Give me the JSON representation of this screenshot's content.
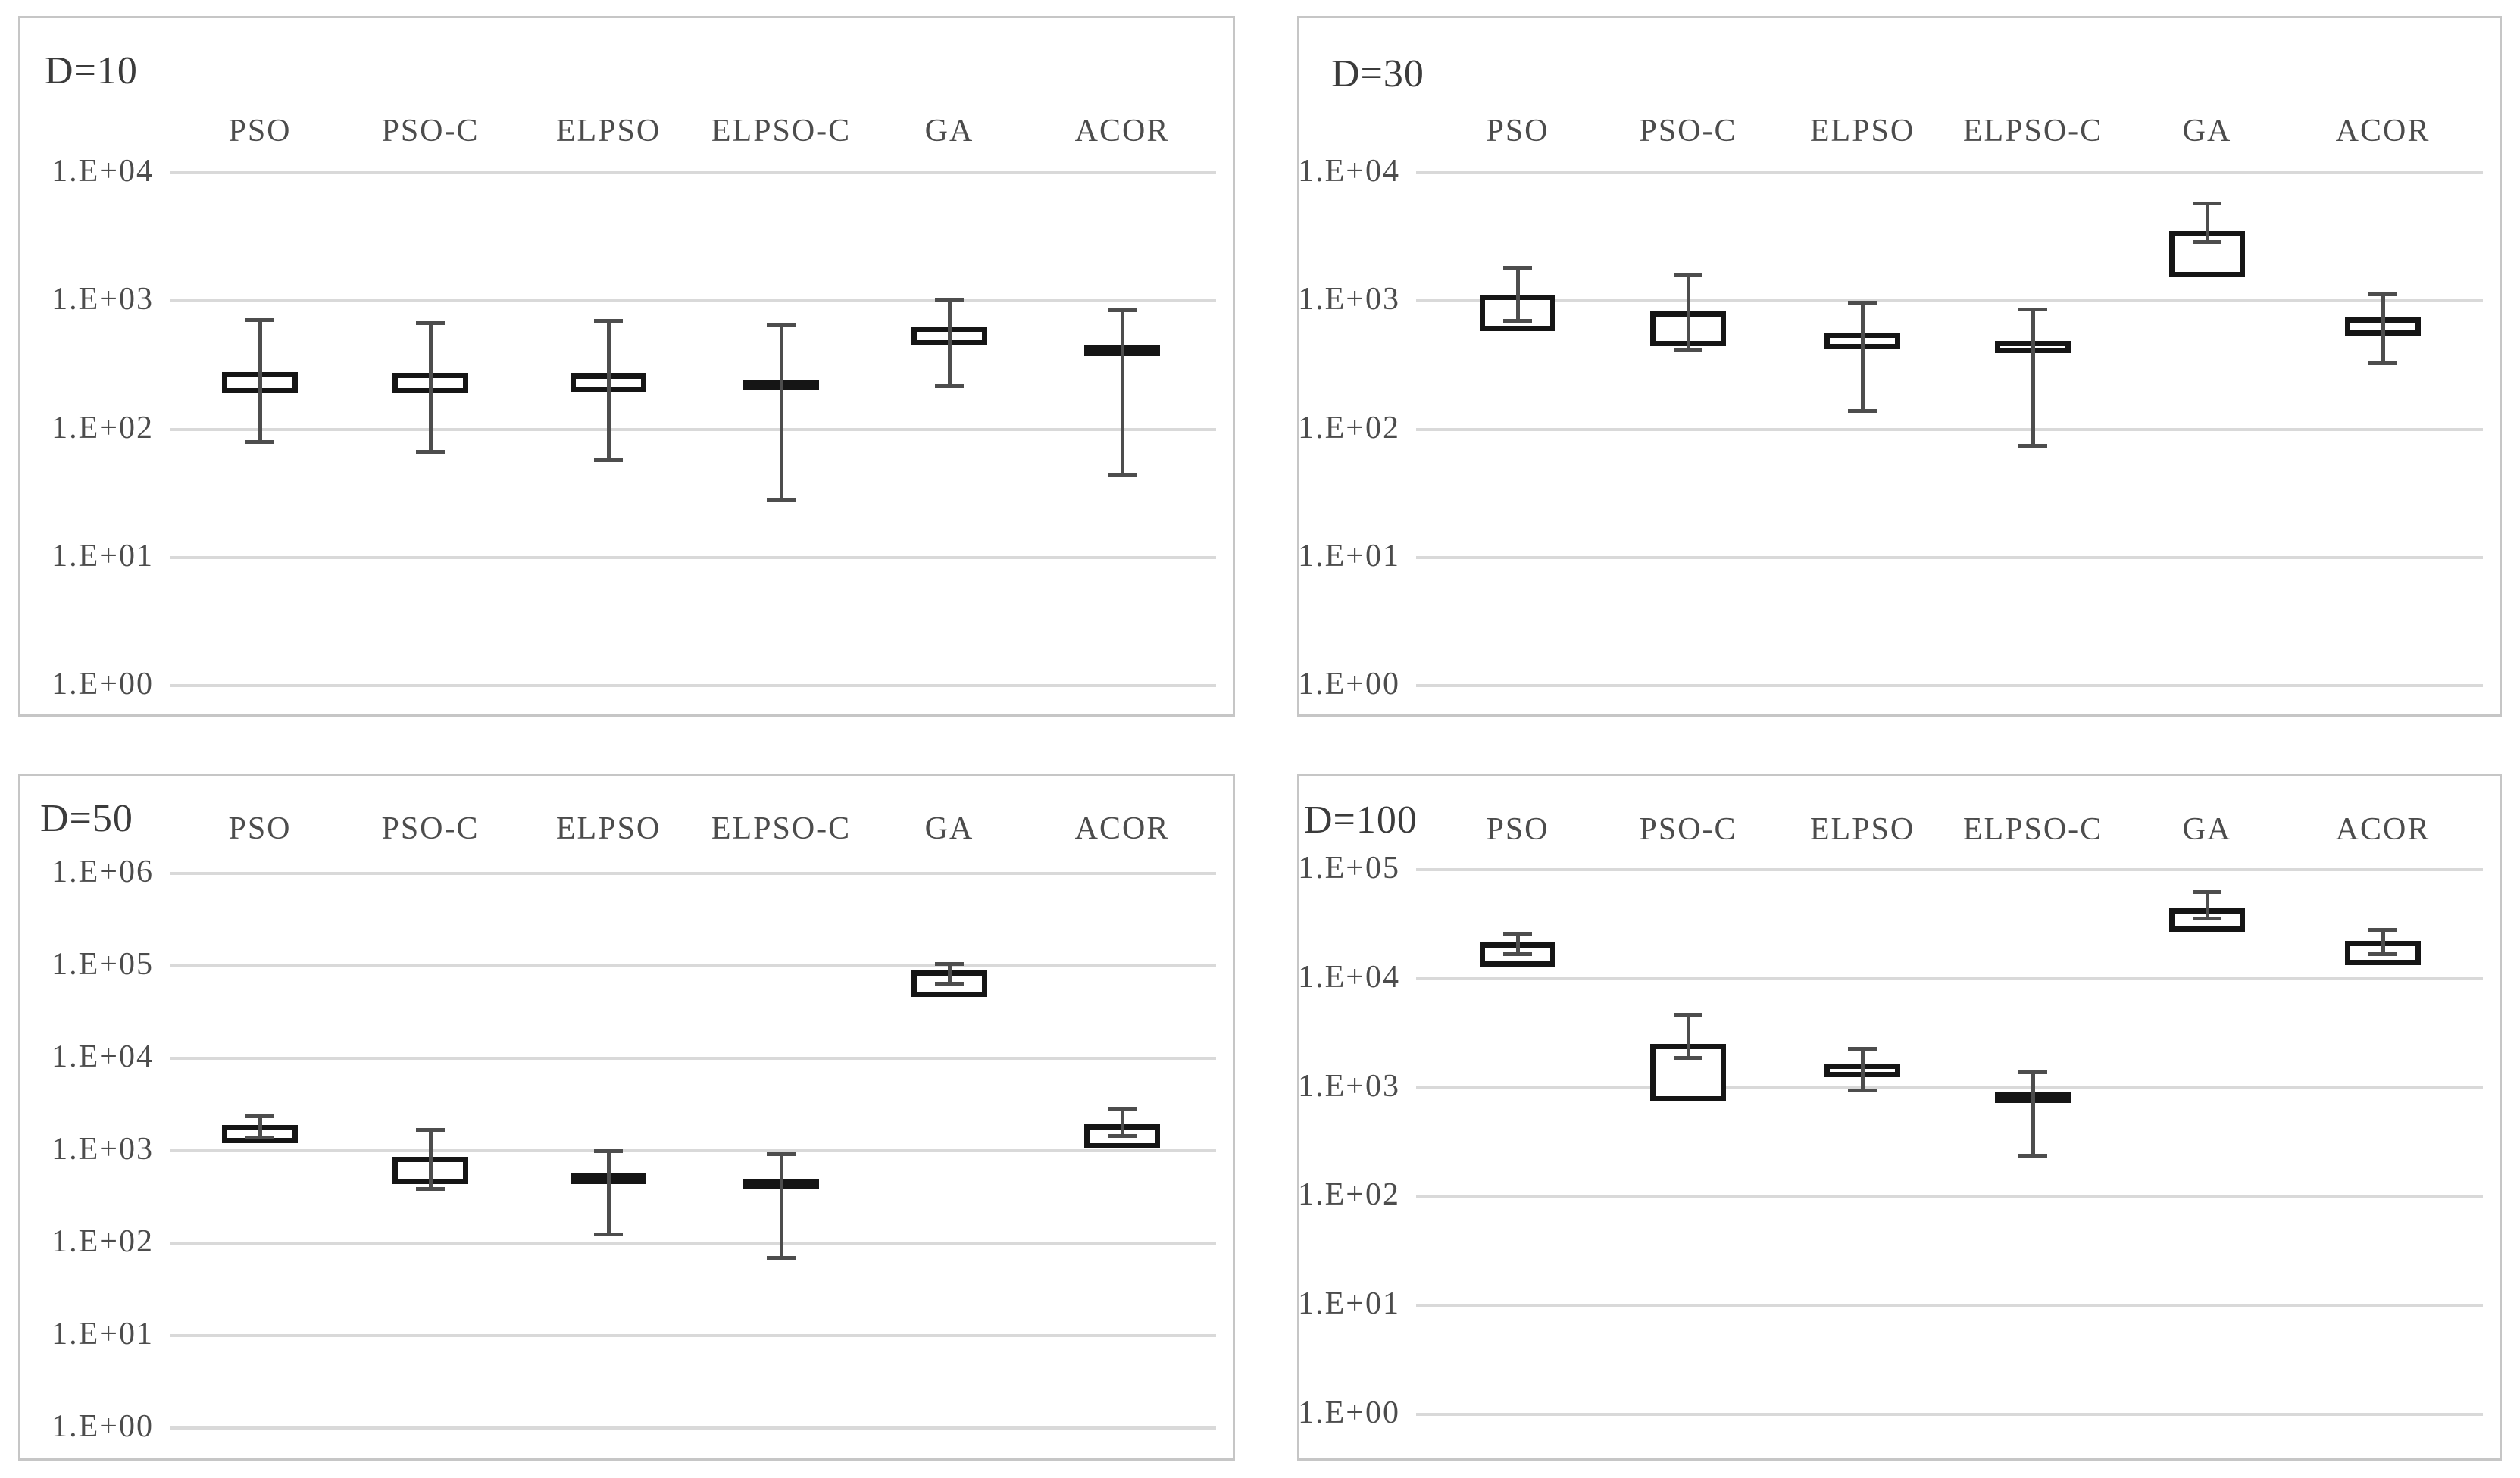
{
  "page": {
    "background": "#ffffff"
  },
  "colors": {
    "panel_border": "#c6c6c6",
    "gridline": "#d9d9d9",
    "whisker": "#4d4d4d",
    "box_border": "#151515",
    "title_text": "#3b3b3b",
    "label_text": "#4c4c4c"
  },
  "categories": [
    "PSO",
    "PSO-C",
    "ELPSO",
    "ELPSO-C",
    "GA",
    "ACOR"
  ],
  "chart_data": [
    {
      "type": "boxplot",
      "title": "D=10",
      "y_scale": "log",
      "grid": true,
      "ylim": [
        1,
        10000
      ],
      "yticks": [
        "1.E+04",
        "1.E+03",
        "1.E+02",
        "1.E+01",
        "1.E+00"
      ],
      "categories": [
        "PSO",
        "PSO-C",
        "ELPSO",
        "ELPSO-C",
        "GA",
        "ACOR"
      ],
      "series": [
        {
          "name": "PSO",
          "whisker_low": 80,
          "q1": 190,
          "q3": 280,
          "whisker_high": 710
        },
        {
          "name": "PSO-C",
          "whisker_low": 67,
          "q1": 190,
          "q3": 275,
          "whisker_high": 680
        },
        {
          "name": "ELPSO",
          "whisker_low": 58,
          "q1": 193,
          "q3": 270,
          "whisker_high": 700
        },
        {
          "name": "ELPSO-C",
          "whisker_low": 28,
          "q1": 205,
          "q3": 245,
          "whisker_high": 660
        },
        {
          "name": "GA",
          "whisker_low": 220,
          "q1": 450,
          "q3": 630,
          "whisker_high": 1020
        },
        {
          "name": "ACOR",
          "whisker_low": 44,
          "q1": 370,
          "q3": 450,
          "whisker_high": 850
        }
      ]
    },
    {
      "type": "boxplot",
      "title": "D=30",
      "y_scale": "log",
      "grid": true,
      "ylim": [
        1,
        10000
      ],
      "yticks": [
        "1.E+04",
        "1.E+03",
        "1.E+02",
        "1.E+01",
        "1.E+00"
      ],
      "categories": [
        "PSO",
        "PSO-C",
        "ELPSO",
        "ELPSO-C",
        "GA",
        "ACOR"
      ],
      "series": [
        {
          "name": "PSO",
          "whisker_low": 700,
          "q1": 585,
          "q3": 1125,
          "whisker_high": 1820
        },
        {
          "name": "PSO-C",
          "whisker_low": 420,
          "q1": 445,
          "q3": 835,
          "whisker_high": 1600
        },
        {
          "name": "ELPSO",
          "whisker_low": 140,
          "q1": 420,
          "q3": 565,
          "whisker_high": 970
        },
        {
          "name": "ELPSO-C",
          "whisker_low": 75,
          "q1": 395,
          "q3": 490,
          "whisker_high": 860
        },
        {
          "name": "GA",
          "whisker_low": 2900,
          "q1": 1520,
          "q3": 3500,
          "whisker_high": 5800
        },
        {
          "name": "ACOR",
          "whisker_low": 330,
          "q1": 535,
          "q3": 740,
          "whisker_high": 1130
        }
      ]
    },
    {
      "type": "boxplot",
      "title": "D=50",
      "y_scale": "log",
      "grid": true,
      "ylim": [
        1,
        1000000
      ],
      "yticks": [
        "1.E+06",
        "1.E+05",
        "1.E+04",
        "1.E+03",
        "1.E+02",
        "1.E+01",
        "1.E+00"
      ],
      "categories": [
        "PSO",
        "PSO-C",
        "ELPSO",
        "ELPSO-C",
        "GA",
        "ACOR"
      ],
      "series": [
        {
          "name": "PSO",
          "whisker_low": 1400,
          "q1": 1210,
          "q3": 1900,
          "whisker_high": 2400
        },
        {
          "name": "PSO-C",
          "whisker_low": 390,
          "q1": 435,
          "q3": 860,
          "whisker_high": 1700
        },
        {
          "name": "ELPSO",
          "whisker_low": 125,
          "q1": 435,
          "q3": 565,
          "whisker_high": 1000
        },
        {
          "name": "ELPSO-C",
          "whisker_low": 70,
          "q1": 420,
          "q3": 500,
          "whisker_high": 930
        },
        {
          "name": "GA",
          "whisker_low": 65000,
          "q1": 46000,
          "q3": 89000,
          "whisker_high": 105000
        },
        {
          "name": "ACOR",
          "whisker_low": 1450,
          "q1": 1060,
          "q3": 1920,
          "whisker_high": 2900
        }
      ]
    },
    {
      "type": "boxplot",
      "title": "D=100",
      "y_scale": "log",
      "grid": true,
      "ylim": [
        1,
        100000
      ],
      "yticks": [
        "1.E+05",
        "1.E+04",
        "1.E+03",
        "1.E+02",
        "1.E+01",
        "1.E+00"
      ],
      "categories": [
        "PSO",
        "PSO-C",
        "ELPSO",
        "ELPSO-C",
        "GA",
        "ACOR"
      ],
      "series": [
        {
          "name": "PSO",
          "whisker_low": 17000,
          "q1": 12900,
          "q3": 21500,
          "whisker_high": 26000
        },
        {
          "name": "PSO-C",
          "whisker_low": 1900,
          "q1": 750,
          "q3": 2500,
          "whisker_high": 4700
        },
        {
          "name": "ELPSO",
          "whisker_low": 940,
          "q1": 1250,
          "q3": 1660,
          "whisker_high": 2280
        },
        {
          "name": "ELPSO-C",
          "whisker_low": 240,
          "q1": 730,
          "q3": 900,
          "whisker_high": 1390
        },
        {
          "name": "GA",
          "whisker_low": 36000,
          "q1": 27000,
          "q3": 44000,
          "whisker_high": 63000
        },
        {
          "name": "ACOR",
          "whisker_low": 16800,
          "q1": 13200,
          "q3": 22200,
          "whisker_high": 28000
        }
      ]
    }
  ]
}
